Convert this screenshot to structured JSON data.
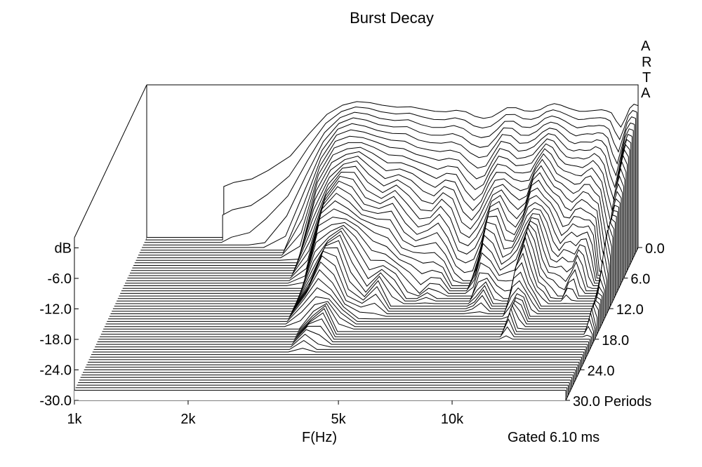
{
  "chart_data": {
    "type": "waterfall",
    "title": "Burst Decay",
    "xlabel": "F(Hz)",
    "ylabel": "dB",
    "zlabel": "Periods",
    "logo_letters": [
      "A",
      "R",
      "T",
      "A"
    ],
    "annotation": "Gated 6.10 ms",
    "x_scale": "log",
    "xlim": [
      1000,
      20000
    ],
    "ylim": [
      -30,
      0
    ],
    "zlim": [
      0,
      30
    ],
    "x_ticks": [
      {
        "value": 1000,
        "label": "1k"
      },
      {
        "value": 2000,
        "label": "2k"
      },
      {
        "value": 5000,
        "label": "5k"
      },
      {
        "value": 10000,
        "label": "10k"
      }
    ],
    "y_ticks": [
      {
        "value": 0,
        "label": "dB"
      },
      {
        "value": -6,
        "label": "-6.0"
      },
      {
        "value": -12,
        "label": "-12.0"
      },
      {
        "value": -18,
        "label": "-18.0"
      },
      {
        "value": -24,
        "label": "-24.0"
      },
      {
        "value": -30,
        "label": "-30.0"
      }
    ],
    "z_ticks": [
      {
        "value": 0,
        "label": "0.0"
      },
      {
        "value": 6,
        "label": "6.0"
      },
      {
        "value": 12,
        "label": "12.0"
      },
      {
        "value": 18,
        "label": "18.0"
      },
      {
        "value": 24,
        "label": "24.0"
      },
      {
        "value": 30,
        "label": "30.0 Periods"
      }
    ],
    "initial_response": {
      "name": "0.0 Periods",
      "freq_hz": [
        1600,
        1700,
        1900,
        2100,
        2400,
        2700,
        3000,
        3300,
        3600,
        3900,
        4200,
        4600,
        5000,
        5400,
        5800,
        6200,
        6600,
        7000,
        7400,
        7800,
        8200,
        8600,
        9000,
        9500,
        10000,
        10500,
        11000,
        11500,
        12000,
        12500,
        13000,
        13500,
        14000,
        14500,
        15000,
        15500,
        16000,
        16500,
        17000,
        17500,
        18000,
        18500,
        19000,
        19500,
        20000
      ],
      "db": [
        -18.0,
        -17.2,
        -16.5,
        -14.8,
        -12.0,
        -7.5,
        -3.8,
        -2.0,
        -1.3,
        -1.5,
        -2.0,
        -2.4,
        -2.3,
        -2.8,
        -3.2,
        -3.3,
        -3.0,
        -3.3,
        -4.2,
        -4.6,
        -4.3,
        -3.4,
        -2.5,
        -2.5,
        -3.1,
        -3.2,
        -2.9,
        -2.1,
        -1.7,
        -2.0,
        -2.5,
        -2.9,
        -3.2,
        -3.2,
        -3.1,
        -3.0,
        -2.9,
        -3.1,
        -3.5,
        -5.1,
        -6.3,
        -4.6,
        -2.6,
        -1.8,
        -2.1
      ]
    },
    "decay_floor_db": -28,
    "slice_count": 61,
    "slice_step_periods": 0.5
  }
}
